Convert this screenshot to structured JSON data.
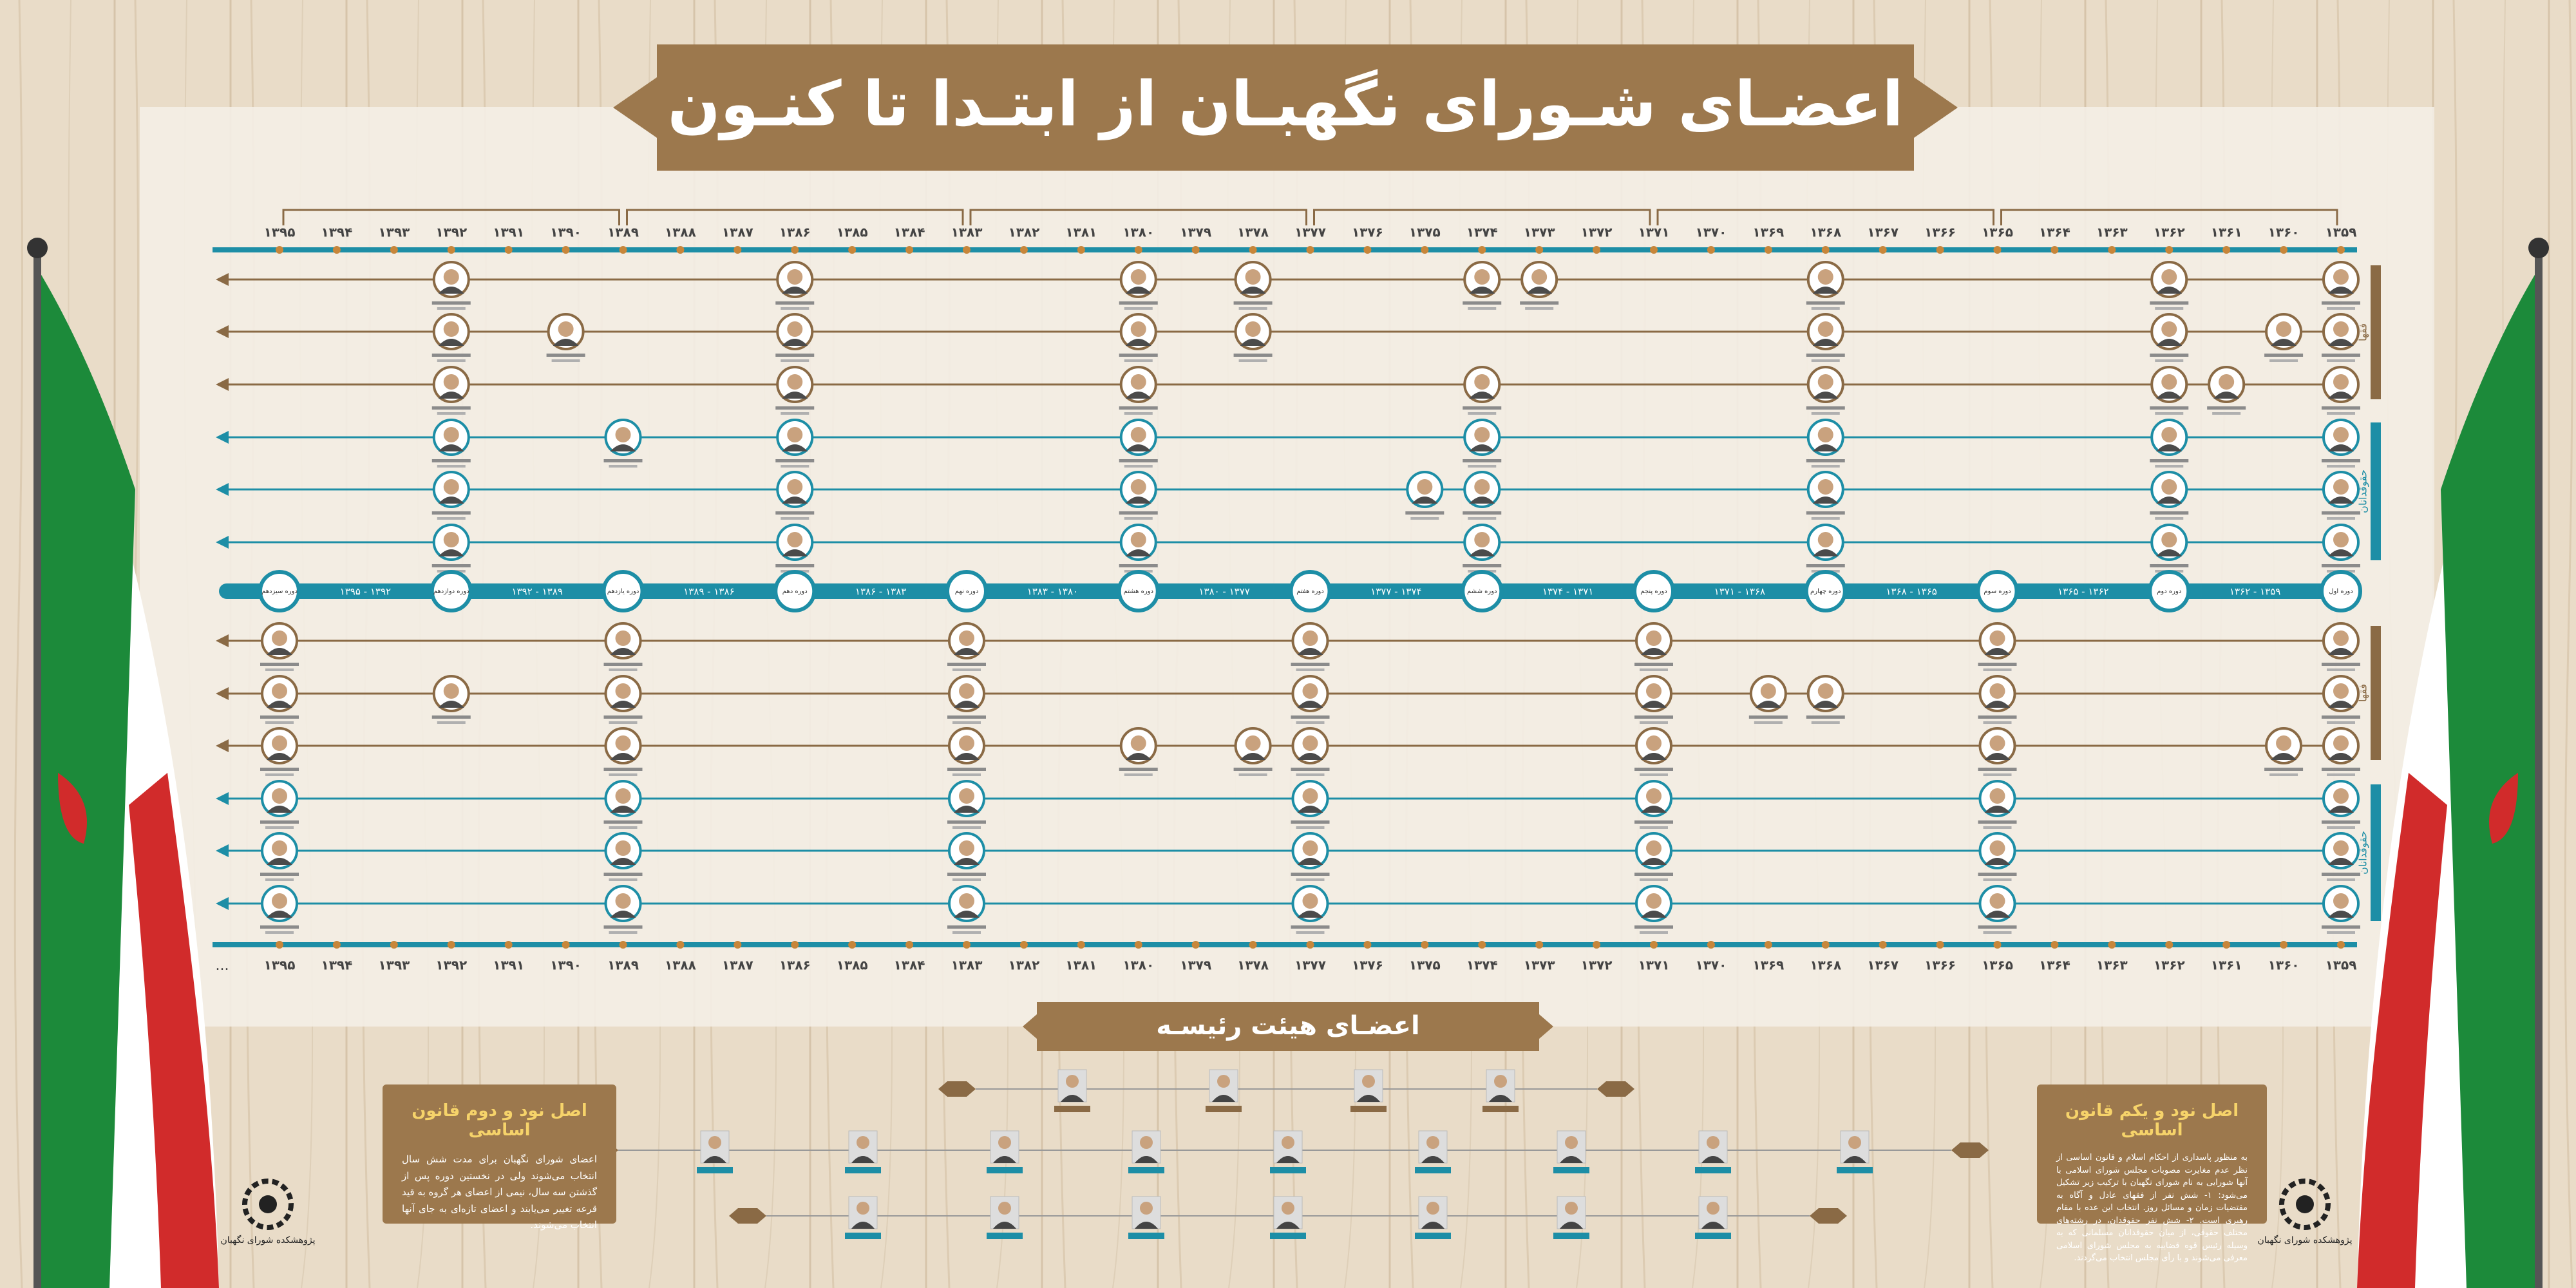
{
  "header": {
    "title": "اعضـای شـورای نگهبـان از ابتـدا تا کنـون"
  },
  "timeline": {
    "years": [
      "۱۳۵۹",
      "۱۳۶۰",
      "۱۳۶۱",
      "۱۳۶۲",
      "۱۳۶۳",
      "۱۳۶۴",
      "۱۳۶۵",
      "۱۳۶۶",
      "۱۳۶۷",
      "۱۳۶۸",
      "۱۳۶۹",
      "۱۳۷۰",
      "۱۳۷۱",
      "۱۳۷۲",
      "۱۳۷۳",
      "۱۳۷۴",
      "۱۳۷۵",
      "۱۳۷۶",
      "۱۳۷۷",
      "۱۳۷۸",
      "۱۳۷۹",
      "۱۳۸۰",
      "۱۳۸۱",
      "۱۳۸۲",
      "۱۳۸۳",
      "۱۳۸۴",
      "۱۳۸۵",
      "۱۳۸۶",
      "۱۳۸۷",
      "۱۳۸۸",
      "۱۳۸۹",
      "۱۳۹۰",
      "۱۳۹۱",
      "۱۳۹۲",
      "۱۳۹۳",
      "۱۳۹۴",
      "۱۳۹۵"
    ],
    "continuation": "...",
    "groups": [
      "فقها",
      "حقوقدانان"
    ],
    "terms": [
      "دوره اول",
      "دوره دوم",
      "دوره سوم",
      "دوره چهارم",
      "دوره پنجم",
      "دوره ششم",
      "دوره هفتم",
      "دوره هشتم",
      "دوره نهم",
      "دوره دهم",
      "دوره یازدهم",
      "دوره دوازدهم",
      "دوره سیزدهم"
    ],
    "term_ranges": [
      "۱۳۵۹ - ۱۳۶۲",
      "۱۳۶۲ - ۱۳۶۵",
      "۱۳۶۵ - ۱۳۶۸",
      "۱۳۶۸ - ۱۳۷۱",
      "۱۳۷۱ - ۱۳۷۴",
      "۱۳۷۴ - ۱۳۷۷",
      "۱۳۷۷ - ۱۳۸۰",
      "۱۳۸۰ - ۱۳۸۳",
      "۱۳۸۳ - ۱۳۸۶",
      "۱۳۸۶ - ۱۳۸۹",
      "۱۳۸۹ - ۱۳۹۲",
      "۱۳۹۲ - ۱۳۹۵"
    ]
  },
  "presidium": {
    "title": "اعضـای هیئت رئیسـه"
  },
  "articles": [
    {
      "title": "اصل نود و یکم قانون اساسی",
      "text": "به منظور پاسداری از احکام اسلام و قانون اساسی از نظر عدم مغایرت مصوبات مجلس شورای اسلامی با آنها شورایی به نام شورای نگهبان با ترکیب زیر تشکیل می‌شود: ۱- شش نفر از فقهای عادل و آگاه به مقتضیات زمان و مسائل روز. انتخاب این عده با مقام رهبری است. ۲- شش نفر حقوقدان، در رشته‌های مختلف حقوقی، از میان حقوقدانان مسلمانی که به وسیله رئیس قوه قضاییه به مجلس شورای اسلامی معرفی می‌شوند و با رأی مجلس انتخاب می‌گردند."
    },
    {
      "title": "اصل نود و دوم قانون اساسی",
      "text": "اعضای شورای نگهبان برای مدت شش سال انتخاب می‌شوند ولی در نخستین دوره پس از گذشتن سه سال، نیمی از اعضای هر گروه به قید قرعه تغییر می‌یابند و اعضای تازه‌ای به جای آنها انتخاب می‌شوند."
    }
  ],
  "logo": {
    "text": "پژوهشکده شورای نگهبان"
  }
}
